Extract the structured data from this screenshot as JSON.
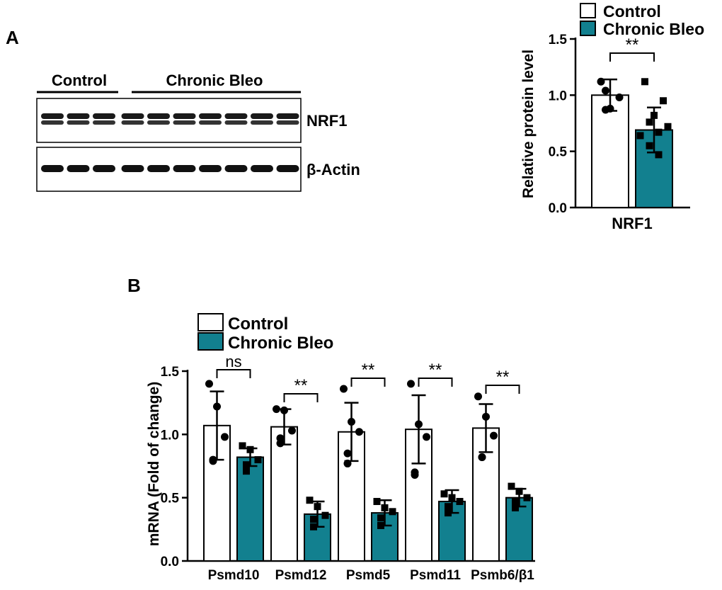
{
  "panel_labels": {
    "a": "A",
    "b": "B"
  },
  "colors": {
    "control": "#ffffff",
    "bleo": "#12808f",
    "stroke": "#000000"
  },
  "blot": {
    "group_control": "Control",
    "group_bleo": "Chronic Bleo",
    "band_top": "NRF1",
    "band_bottom": "β-Actin",
    "lanes_control": 3,
    "lanes_bleo": 7
  },
  "chart_data": [
    {
      "type": "bar",
      "title": "",
      "ylabel": "Relative protein level",
      "categories": [
        "NRF1"
      ],
      "ylim": [
        0,
        1.5
      ],
      "yticks": [
        "0.0",
        "0.5",
        "1.0",
        "1.5"
      ],
      "legend": [
        "Control",
        "Chronic Bleo"
      ],
      "legend_position": "top-right",
      "series": [
        {
          "name": "Control",
          "values": [
            1.0
          ],
          "sd": [
            0.14
          ],
          "points": [
            [
              1.12,
              0.88,
              0.98,
              0.87,
              1.04
            ]
          ]
        },
        {
          "name": "Chronic Bleo",
          "values": [
            0.69
          ],
          "sd": [
            0.2
          ],
          "points": [
            [
              1.12,
              0.82,
              0.95,
              0.76,
              0.55,
              0.72,
              0.64,
              0.47,
              0.67
            ]
          ]
        }
      ],
      "significance": [
        "**"
      ]
    },
    {
      "type": "bar",
      "title": "",
      "ylabel": "mRNA (Fold of change)",
      "categories": [
        "Psmd10",
        "Psmd12",
        "Psmd5",
        "Psmd11",
        "Psmb6/β1"
      ],
      "ylim": [
        0,
        1.5
      ],
      "yticks": [
        "0.0",
        "0.5",
        "1.0",
        "1.5"
      ],
      "legend": [
        "Control",
        "Chronic Bleo"
      ],
      "legend_position": "top-left",
      "series": [
        {
          "name": "Control",
          "values": [
            1.07,
            1.06,
            1.02,
            1.04,
            1.05
          ],
          "sd": [
            0.27,
            0.14,
            0.23,
            0.27,
            0.19
          ],
          "points": [
            [
              1.4,
              1.22,
              0.98,
              0.8,
              0.79
            ],
            [
              1.2,
              1.19,
              1.03,
              0.93,
              0.97
            ],
            [
              1.36,
              1.1,
              1.02,
              0.85,
              0.77
            ],
            [
              1.4,
              1.08,
              0.98,
              0.7,
              0.68
            ],
            [
              1.3,
              1.14,
              0.99,
              0.82,
              0.82
            ]
          ]
        },
        {
          "name": "Chronic Bleo",
          "values": [
            0.82,
            0.37,
            0.38,
            0.47,
            0.5
          ],
          "sd": [
            0.07,
            0.1,
            0.1,
            0.09,
            0.07
          ],
          "points": [
            [
              0.91,
              0.88,
              0.8,
              0.76,
              0.71
            ],
            [
              0.48,
              0.43,
              0.36,
              0.33,
              0.27
            ],
            [
              0.47,
              0.42,
              0.39,
              0.34,
              0.28
            ],
            [
              0.53,
              0.5,
              0.47,
              0.43,
              0.38
            ],
            [
              0.59,
              0.55,
              0.5,
              0.47,
              0.42
            ]
          ]
        }
      ],
      "significance": [
        "ns",
        "**",
        "**",
        "**",
        "**"
      ]
    }
  ]
}
